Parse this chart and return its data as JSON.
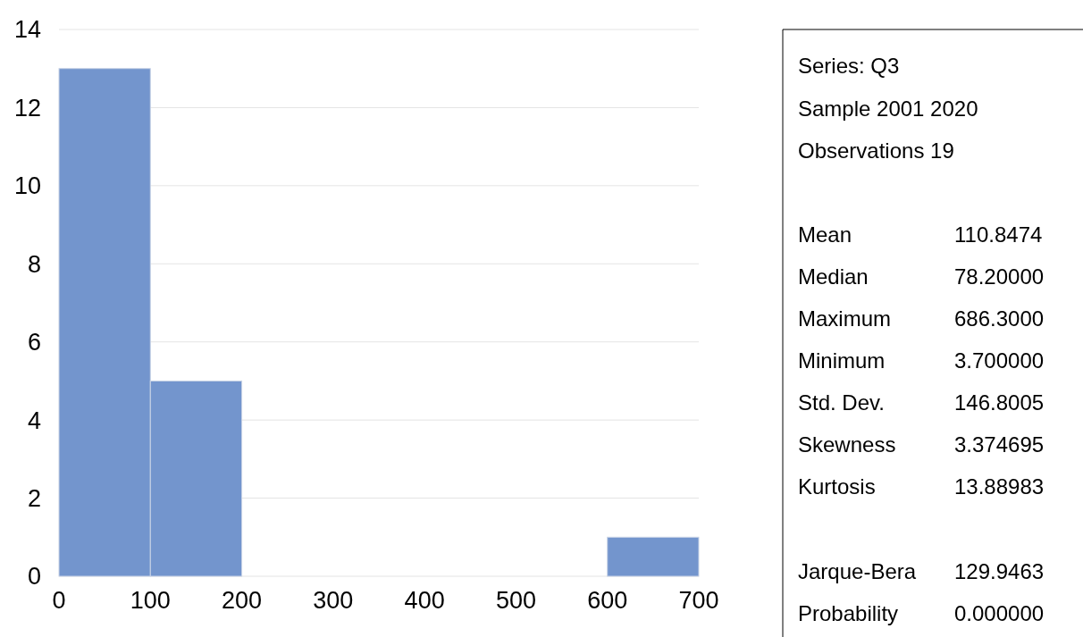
{
  "chart_data": {
    "type": "histogram",
    "bins": [
      0,
      100,
      200,
      300,
      400,
      500,
      600,
      700
    ],
    "values": [
      13,
      5,
      0,
      0,
      0,
      0,
      1
    ],
    "color": "#7395cd",
    "xlim": [
      0,
      700
    ],
    "xticks": [
      0,
      100,
      200,
      300,
      400,
      500,
      600,
      700
    ],
    "ylim": [
      0,
      14
    ],
    "yticks": [
      0,
      2,
      4,
      6,
      8,
      10,
      12,
      14
    ],
    "grid": "y",
    "annotations": [
      "Series: Q3",
      "Sample 2001 2020",
      "Observations 19",
      "Mean 110.8474",
      "Median 78.20000",
      "Maximum 686.3000",
      "Minimum 3.700000",
      "Std. Dev. 146.8005",
      "Skewness 3.374695",
      "Kurtosis 13.88983",
      "Jarque-Bera 129.9463",
      "Probability 0.000000"
    ]
  }
}
